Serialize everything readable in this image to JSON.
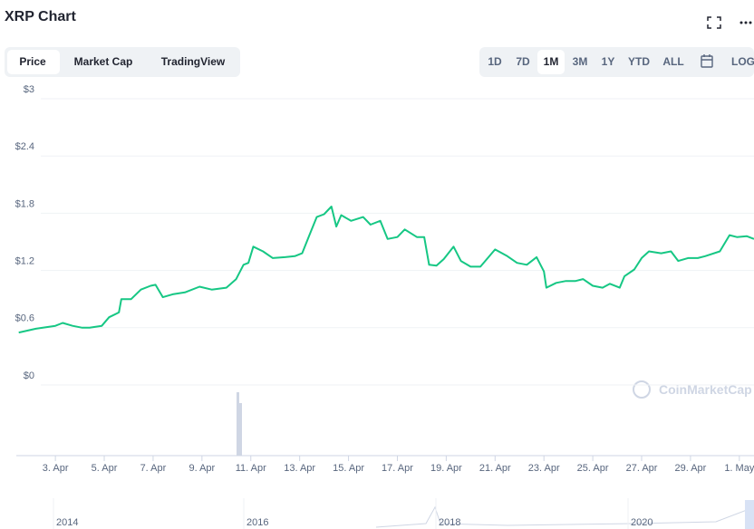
{
  "header": {
    "title": "XRP Chart"
  },
  "tabs": [
    "Price",
    "Market Cap",
    "TradingView"
  ],
  "ranges": [
    "1D",
    "7D",
    "1M",
    "3M",
    "1Y",
    "YTD",
    "ALL",
    "LOG"
  ],
  "watermark": "CoinMarketCap",
  "navigator": {
    "labels": [
      "2014",
      "2016",
      "2018",
      "2020"
    ]
  },
  "chart_data": {
    "type": "line",
    "color": "#16c784",
    "grid": true,
    "x": [
      1.5,
      2.2,
      3.0,
      3.3,
      3.7,
      4.1,
      4.4,
      4.9,
      5.2,
      5.6,
      5.7,
      6.1,
      6.5,
      6.9,
      7.1,
      7.4,
      7.8,
      8.3,
      8.9,
      9.4,
      10.0,
      10.4,
      10.7,
      10.9,
      11.1,
      11.5,
      11.9,
      12.4,
      12.8,
      13.1,
      13.4,
      13.7,
      14.0,
      14.3,
      14.5,
      14.7,
      15.1,
      15.6,
      15.9,
      16.3,
      16.6,
      17.0,
      17.3,
      17.8,
      18.1,
      18.3,
      18.6,
      18.9,
      19.3,
      19.6,
      20.0,
      20.4,
      20.7,
      21.0,
      21.5,
      21.9,
      22.3,
      22.7,
      23.0,
      23.1,
      23.5,
      23.9,
      24.3,
      24.6,
      25.0,
      25.4,
      25.7,
      26.1,
      26.3,
      26.7,
      27.0,
      27.3,
      27.8,
      28.2,
      28.5,
      28.9,
      29.3,
      29.6,
      30.2,
      30.6,
      30.9,
      31.3,
      31.6
    ],
    "values": [
      0.55,
      0.59,
      0.62,
      0.65,
      0.62,
      0.6,
      0.6,
      0.62,
      0.71,
      0.76,
      0.9,
      0.9,
      1.0,
      1.04,
      1.05,
      0.92,
      0.95,
      0.97,
      1.03,
      1.0,
      1.02,
      1.11,
      1.26,
      1.28,
      1.45,
      1.4,
      1.33,
      1.34,
      1.35,
      1.38,
      1.57,
      1.76,
      1.79,
      1.87,
      1.66,
      1.78,
      1.72,
      1.76,
      1.68,
      1.72,
      1.53,
      1.55,
      1.63,
      1.55,
      1.55,
      1.26,
      1.25,
      1.32,
      1.45,
      1.3,
      1.24,
      1.24,
      1.33,
      1.42,
      1.35,
      1.28,
      1.26,
      1.34,
      1.19,
      1.02,
      1.07,
      1.09,
      1.09,
      1.11,
      1.04,
      1.02,
      1.06,
      1.02,
      1.14,
      1.21,
      1.33,
      1.4,
      1.38,
      1.4,
      1.3,
      1.33,
      1.33,
      1.35,
      1.4,
      1.57,
      1.55,
      1.56,
      1.53
    ],
    "xlim": [
      1.4,
      31.6
    ],
    "xticks": [
      {
        "value": 3,
        "label": "3. Apr"
      },
      {
        "value": 5,
        "label": "5. Apr"
      },
      {
        "value": 7,
        "label": "7. Apr"
      },
      {
        "value": 9,
        "label": "9. Apr"
      },
      {
        "value": 11,
        "label": "11. Apr"
      },
      {
        "value": 13,
        "label": "13. Apr"
      },
      {
        "value": 15,
        "label": "15. Apr"
      },
      {
        "value": 17,
        "label": "17. Apr"
      },
      {
        "value": 19,
        "label": "19. Apr"
      },
      {
        "value": 21,
        "label": "21. Apr"
      },
      {
        "value": 23,
        "label": "23. Apr"
      },
      {
        "value": 25,
        "label": "25. Apr"
      },
      {
        "value": 27,
        "label": "27. Apr"
      },
      {
        "value": 29,
        "label": "29. Apr"
      },
      {
        "value": 31,
        "label": "1. May"
      }
    ],
    "ylim": [
      0,
      3
    ],
    "yticks": [
      {
        "value": 0,
        "label": "$0"
      },
      {
        "value": 0.6,
        "label": "$0.6"
      },
      {
        "value": 1.2,
        "label": "$1.2"
      },
      {
        "value": 1.8,
        "label": "$1.8"
      },
      {
        "value": 2.4,
        "label": "$2.4"
      },
      {
        "value": 3,
        "label": "$3"
      }
    ]
  }
}
